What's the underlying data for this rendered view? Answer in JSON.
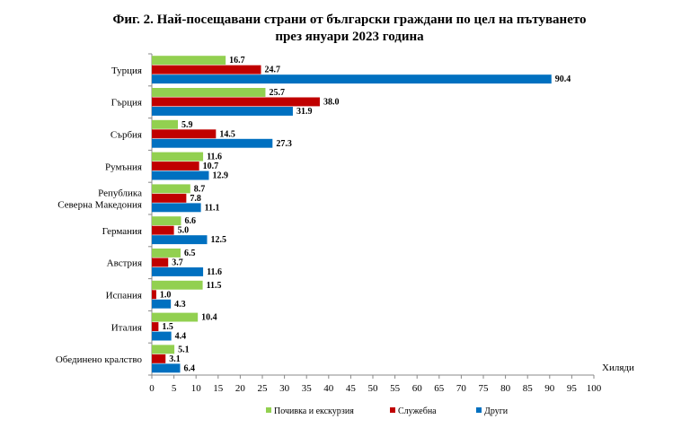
{
  "chart_data": {
    "type": "bar",
    "orientation": "horizontal",
    "title_lines": [
      "Фиг. 2. Най-посещавани страни от български граждани по цел на пътуването",
      "през януари 2023 година"
    ],
    "categories": [
      [
        "Турция"
      ],
      [
        "Гърция"
      ],
      [
        "Сърбия"
      ],
      [
        "Румъния"
      ],
      [
        "Република",
        "Северна Македония"
      ],
      [
        "Германия"
      ],
      [
        "Австрия"
      ],
      [
        "Испания"
      ],
      [
        "Италия"
      ],
      [
        "Обединено кралство"
      ]
    ],
    "series": [
      {
        "name": "Почивка и екскурзия",
        "color": "#92d050",
        "values": [
          16.7,
          25.7,
          5.9,
          11.6,
          8.7,
          6.6,
          6.5,
          11.5,
          10.4,
          5.1
        ]
      },
      {
        "name": "Служебна",
        "color": "#c00000",
        "values": [
          24.7,
          38.0,
          14.5,
          10.7,
          7.8,
          5.0,
          3.7,
          1.0,
          1.5,
          3.1
        ]
      },
      {
        "name": "Други",
        "color": "#0070c0",
        "values": [
          90.4,
          31.9,
          27.3,
          12.9,
          11.1,
          12.5,
          11.6,
          4.3,
          4.4,
          6.4
        ]
      }
    ],
    "xlim": [
      0,
      100
    ],
    "xticks": [
      0,
      5,
      10,
      15,
      20,
      25,
      30,
      35,
      40,
      45,
      50,
      55,
      60,
      65,
      70,
      75,
      80,
      85,
      90,
      95,
      100
    ],
    "xlabel": "Хиляди",
    "value_format": "fixed1",
    "legend_position": "bottom"
  }
}
